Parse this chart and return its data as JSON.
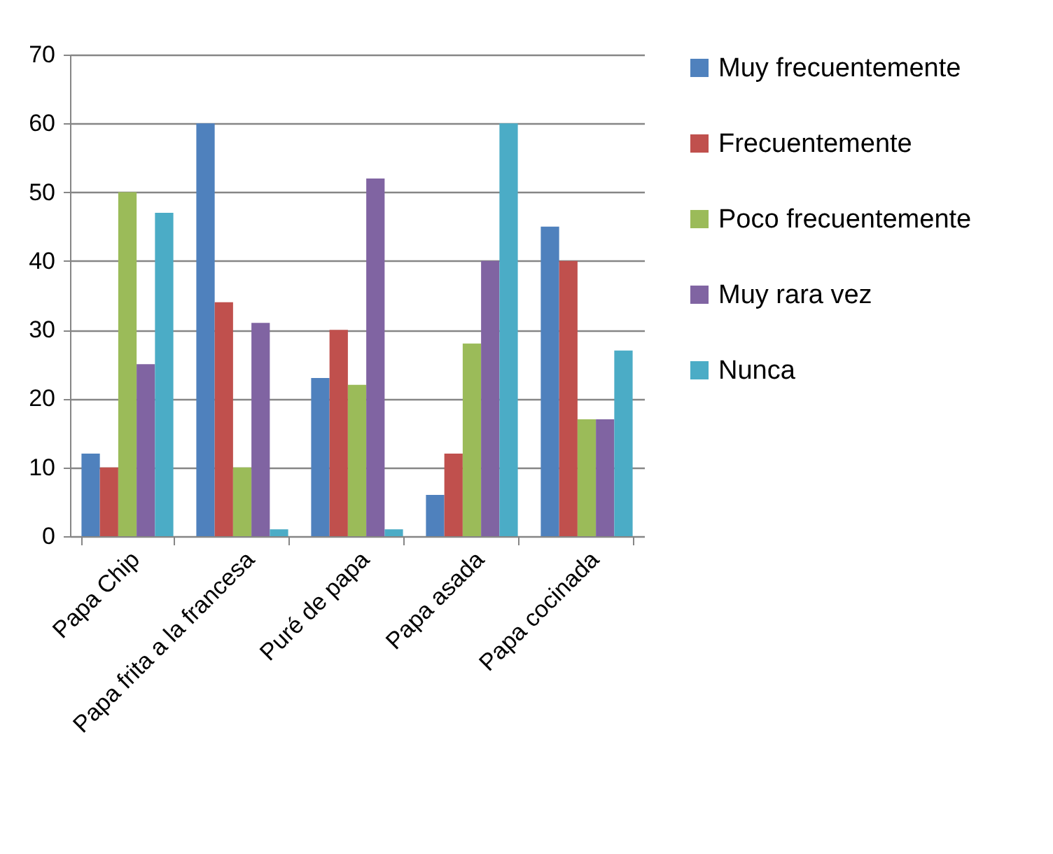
{
  "chart_data": {
    "type": "bar",
    "categories": [
      "Papa Chip",
      "Papa frita a la francesa",
      "Puré de papa",
      "Papa asada",
      "Papa cocinada"
    ],
    "series": [
      {
        "name": "Muy frecuentemente",
        "color": "#4f81bd",
        "values": [
          12,
          60,
          23,
          6,
          45
        ]
      },
      {
        "name": "Frecuentemente",
        "color": "#c0504d",
        "values": [
          10,
          34,
          30,
          12,
          40
        ]
      },
      {
        "name": "Poco frecuentemente",
        "color": "#9bbb59",
        "values": [
          50,
          10,
          22,
          28,
          17
        ]
      },
      {
        "name": "Muy rara vez",
        "color": "#8064a2",
        "values": [
          25,
          31,
          52,
          40,
          17
        ]
      },
      {
        "name": "Nunca",
        "color": "#4bacc6",
        "values": [
          47,
          1,
          1,
          60,
          27
        ]
      }
    ],
    "ylim": [
      0,
      70
    ],
    "yticks": [
      0,
      10,
      20,
      30,
      40,
      50,
      60,
      70
    ],
    "grid": "y",
    "legend": "right"
  }
}
